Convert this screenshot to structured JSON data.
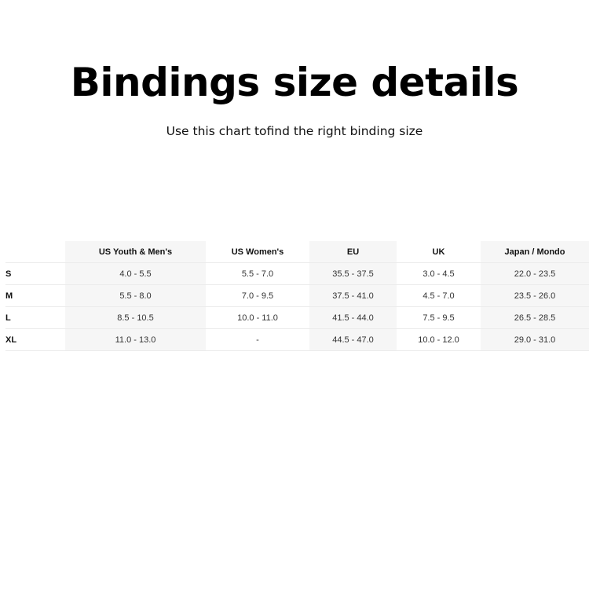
{
  "title": "Bindings size details",
  "subtitle": "Use this chart tofind the right binding size",
  "table": {
    "headers": [
      "",
      "US Youth & Men's",
      "US Women's",
      "EU",
      "UK",
      "Japan / Mondo"
    ],
    "rows": [
      [
        "S",
        "4.0 - 5.5",
        "5.5 - 7.0",
        "35.5 - 37.5",
        "3.0 - 4.5",
        "22.0 - 23.5"
      ],
      [
        "M",
        "5.5 - 8.0",
        "7.0 - 9.5",
        "37.5 - 41.0",
        "4.5 - 7.0",
        "23.5 - 26.0"
      ],
      [
        "L",
        "8.5 - 10.5",
        "10.0 - 11.0",
        "41.5 - 44.0",
        "7.5 - 9.5",
        "26.5 - 28.5"
      ],
      [
        "XL",
        "11.0 - 13.0",
        "-",
        "44.5 - 47.0",
        "10.0 - 12.0",
        "29.0 - 31.0"
      ]
    ]
  }
}
